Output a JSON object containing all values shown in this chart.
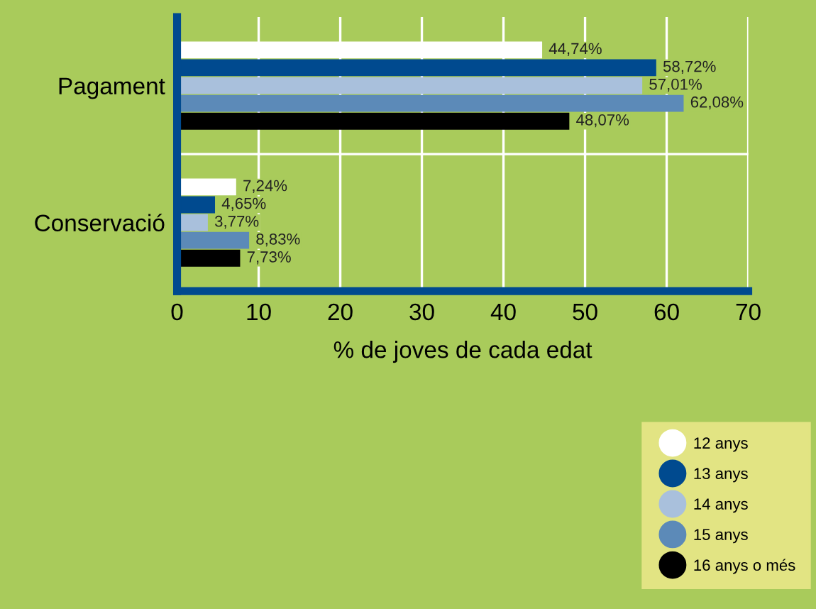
{
  "chart_data": {
    "type": "bar",
    "orientation": "horizontal",
    "xlabel": "% de joves de cada edat",
    "categories": [
      "Pagament",
      "Conservació"
    ],
    "series": [
      {
        "name": "12 anys",
        "color": "#ffffff",
        "values": [
          44.74,
          7.24
        ],
        "value_labels": [
          "44,74%",
          "7,24%"
        ]
      },
      {
        "name": "13 anys",
        "color": "#004a8f",
        "values": [
          58.72,
          4.65
        ],
        "value_labels": [
          "58,72%",
          "4,65%"
        ]
      },
      {
        "name": "14 anys",
        "color": "#a9c0dc",
        "values": [
          57.01,
          3.77
        ],
        "value_labels": [
          "57,01%",
          "3,77%"
        ]
      },
      {
        "name": "15 anys",
        "color": "#5c8ab8",
        "values": [
          62.08,
          8.83
        ],
        "value_labels": [
          "62,08%",
          "8,83%"
        ]
      },
      {
        "name": "16 anys o més",
        "color": "#000000",
        "values": [
          48.07,
          7.73
        ],
        "value_labels": [
          "48,07%",
          "7,73%"
        ]
      }
    ],
    "xlim": [
      0,
      70
    ],
    "xticks": [
      0,
      10,
      20,
      30,
      40,
      50,
      60,
      70
    ],
    "grid": "x",
    "legend": "bottom right"
  }
}
